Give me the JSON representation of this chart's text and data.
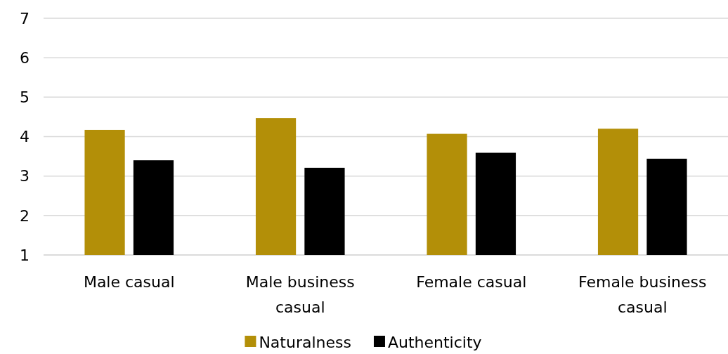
{
  "chart_data": {
    "type": "bar",
    "categories": [
      "Male casual",
      "Male business casual",
      "Female casual",
      "Female business casual"
    ],
    "series": [
      {
        "name": "Naturalness",
        "color": "#b38f08",
        "values": [
          4.17,
          4.47,
          4.07,
          4.2
        ]
      },
      {
        "name": "Authenticity",
        "color": "#000000",
        "values": [
          3.4,
          3.21,
          3.59,
          3.44
        ]
      }
    ],
    "ylim": [
      1,
      7
    ],
    "yticks": [
      1,
      2,
      3,
      4,
      5,
      6,
      7
    ],
    "grid": "y",
    "legend": "bottom"
  }
}
